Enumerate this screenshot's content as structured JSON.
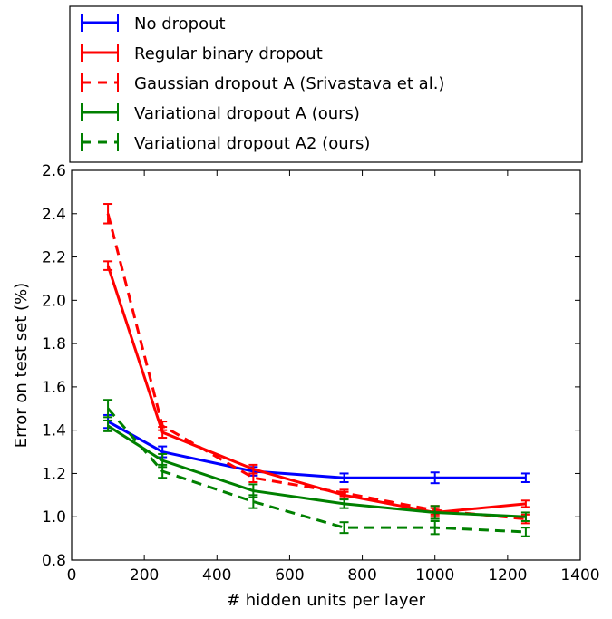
{
  "chart_data": {
    "type": "line",
    "xlabel": "# hidden units per layer",
    "ylabel": "Error on test set (%)",
    "xlim": [
      0,
      1400
    ],
    "ylim": [
      0.8,
      2.6
    ],
    "xticks": [
      "0",
      "200",
      "400",
      "600",
      "800",
      "1000",
      "1200",
      "1400"
    ],
    "yticks": [
      "0.8",
      "1.0",
      "1.2",
      "1.4",
      "1.6",
      "1.8",
      "2.0",
      "2.2",
      "2.4",
      "2.6"
    ],
    "legend_position": "above plot",
    "grid": false,
    "x": [
      100,
      250,
      500,
      750,
      1000,
      1250
    ],
    "series": [
      {
        "name": "No dropout",
        "color": "#0000ff",
        "dashed": false,
        "values": [
          1.44,
          1.3,
          1.21,
          1.18,
          1.18,
          1.18
        ],
        "errors": [
          0.03,
          0.025,
          0.02,
          0.02,
          0.025,
          0.02
        ]
      },
      {
        "name": "Regular binary dropout",
        "color": "#ff0000",
        "dashed": false,
        "values": [
          2.16,
          1.39,
          1.22,
          1.1,
          1.02,
          1.06
        ],
        "errors": [
          0.02,
          0.025,
          0.02,
          0.015,
          0.02,
          0.015
        ]
      },
      {
        "name": "Gaussian dropout A (Srivastava et al.)",
        "color": "#ff0000",
        "dashed": true,
        "values": [
          2.4,
          1.42,
          1.18,
          1.11,
          1.03,
          0.99
        ],
        "errors": [
          0.045,
          0.02,
          0.02,
          0.015,
          0.02,
          0.02
        ]
      },
      {
        "name": "Variational dropout A (ours)",
        "color": "#008000",
        "dashed": false,
        "values": [
          1.42,
          1.26,
          1.12,
          1.06,
          1.02,
          1.0
        ],
        "errors": [
          0.025,
          0.03,
          0.03,
          0.02,
          0.03,
          0.02
        ]
      },
      {
        "name": "Variational dropout A2 (ours)",
        "color": "#008000",
        "dashed": true,
        "values": [
          1.5,
          1.21,
          1.07,
          0.95,
          0.95,
          0.93
        ],
        "errors": [
          0.04,
          0.03,
          0.03,
          0.025,
          0.03,
          0.02
        ]
      }
    ]
  }
}
